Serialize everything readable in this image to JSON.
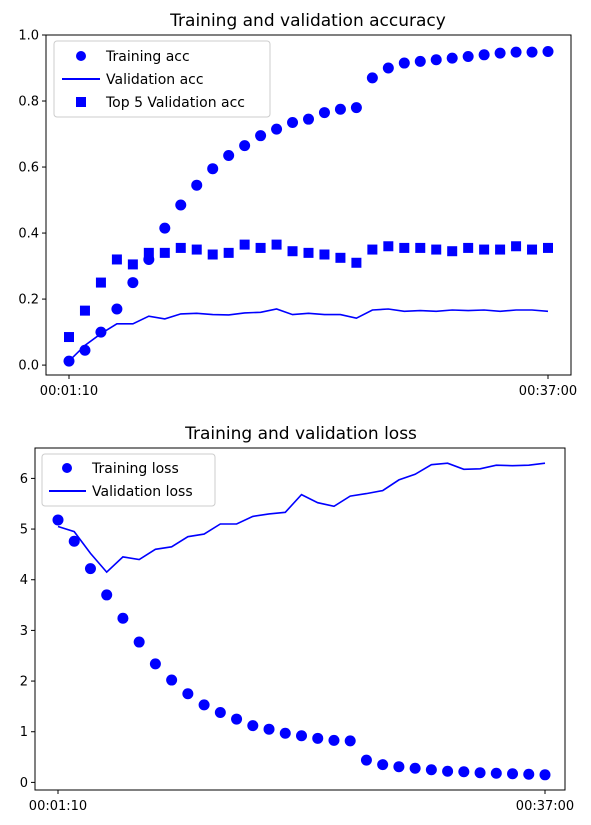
{
  "chart_data": [
    {
      "type": "scatter",
      "title": "Training and validation accuracy",
      "xlabel": "",
      "ylabel": "",
      "x_tick_labels": [
        "00:01:10",
        "00:37:00"
      ],
      "ylim": [
        -0.03,
        1.0
      ],
      "y_ticks": [
        "0.0",
        "0.2",
        "0.4",
        "0.6",
        "0.8",
        "1.0"
      ],
      "grid": false,
      "legend_position": "top-left",
      "series": [
        {
          "name": "Training acc",
          "style": "circle",
          "color": "#0000ff",
          "values": [
            0.012,
            0.045,
            0.1,
            0.17,
            0.25,
            0.32,
            0.415,
            0.485,
            0.545,
            0.595,
            0.635,
            0.665,
            0.695,
            0.715,
            0.735,
            0.745,
            0.765,
            0.775,
            0.78,
            0.87,
            0.9,
            0.915,
            0.92,
            0.925,
            0.93,
            0.935,
            0.94,
            0.945,
            0.948,
            0.948,
            0.95
          ]
        },
        {
          "name": "Validation acc",
          "style": "line",
          "color": "#0000ff",
          "values": [
            0.012,
            0.06,
            0.095,
            0.125,
            0.125,
            0.148,
            0.14,
            0.155,
            0.157,
            0.153,
            0.152,
            0.158,
            0.16,
            0.17,
            0.153,
            0.157,
            0.153,
            0.153,
            0.142,
            0.167,
            0.17,
            0.163,
            0.165,
            0.163,
            0.167,
            0.165,
            0.167,
            0.163,
            0.167,
            0.167,
            0.163
          ]
        },
        {
          "name": "Top 5 Validation acc",
          "style": "square",
          "color": "#0000ff",
          "values": [
            0.085,
            0.165,
            0.25,
            0.32,
            0.305,
            0.34,
            0.34,
            0.355,
            0.35,
            0.335,
            0.34,
            0.365,
            0.355,
            0.365,
            0.345,
            0.34,
            0.335,
            0.325,
            0.31,
            0.35,
            0.36,
            0.355,
            0.355,
            0.35,
            0.345,
            0.355,
            0.35,
            0.35,
            0.36,
            0.35,
            0.355
          ]
        }
      ]
    },
    {
      "type": "scatter",
      "title": "Training and validation loss",
      "xlabel": "",
      "ylabel": "",
      "x_tick_labels": [
        "00:01:10",
        "00:37:00"
      ],
      "ylim": [
        -0.15,
        6.6
      ],
      "y_ticks": [
        "0",
        "1",
        "2",
        "3",
        "4",
        "5",
        "6"
      ],
      "grid": false,
      "legend_position": "top-left",
      "series": [
        {
          "name": "Training loss",
          "style": "circle",
          "color": "#0000ff",
          "values": [
            5.18,
            4.76,
            4.22,
            3.7,
            3.24,
            2.77,
            2.34,
            2.02,
            1.75,
            1.53,
            1.38,
            1.25,
            1.12,
            1.05,
            0.97,
            0.92,
            0.87,
            0.83,
            0.82,
            0.44,
            0.35,
            0.31,
            0.28,
            0.25,
            0.22,
            0.21,
            0.19,
            0.18,
            0.17,
            0.16,
            0.15
          ]
        },
        {
          "name": "Validation loss",
          "style": "line",
          "color": "#0000ff",
          "values": [
            5.05,
            4.95,
            4.52,
            4.15,
            4.45,
            4.4,
            4.6,
            4.65,
            4.85,
            4.9,
            5.1,
            5.1,
            5.25,
            5.3,
            5.33,
            5.68,
            5.52,
            5.45,
            5.65,
            5.7,
            5.76,
            5.97,
            6.08,
            6.27,
            6.3,
            6.18,
            6.19,
            6.26,
            6.25,
            6.26,
            6.3
          ]
        }
      ]
    }
  ]
}
